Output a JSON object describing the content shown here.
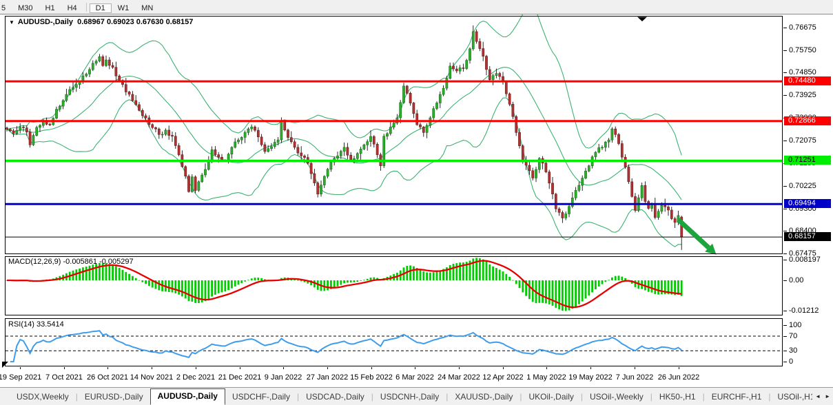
{
  "toolbar": {
    "timeframes": [
      "5",
      "M30",
      "H1",
      "H4",
      "D1",
      "W1",
      "MN"
    ],
    "active": "D1"
  },
  "chart": {
    "dropdown_glyph": "▼",
    "title": "AUDUSD-,Daily",
    "ohlc": "0.68967 0.69023 0.67630 0.68157"
  },
  "chart_data": {
    "type": "candlestick",
    "symbol": "AUDUSD-",
    "timeframe": "Daily",
    "last_bar": {
      "open": 0.68967,
      "high": 0.69023,
      "low": 0.6763,
      "close": 0.68157
    },
    "bars_total": 205,
    "price_range": [
      0.6746,
      0.7714
    ],
    "price_axis_ticks": [
      "0.76675",
      "0.75750",
      "0.74850",
      "0.73925",
      "0.73000",
      "0.72075",
      "0.71150",
      "0.70225",
      "0.69300",
      "0.68400",
      "0.67475"
    ],
    "hlines": [
      {
        "value": 0.7448,
        "label": "0.74480",
        "color": "#FF0000",
        "width": 3,
        "text": "#FFFFFF"
      },
      {
        "value": 0.72866,
        "label": "0.72866",
        "color": "#FF0000",
        "width": 3,
        "text": "#FFFFFF"
      },
      {
        "value": 0.71251,
        "label": "0.71251",
        "color": "#00EE00",
        "width": 3.5,
        "text": "#000000"
      },
      {
        "value": 0.69494,
        "label": "0.69494",
        "color": "#0000C8",
        "width": 3,
        "text": "#FFFFFF"
      },
      {
        "value": 0.68157,
        "label": "0.68157",
        "color": "#000000",
        "width": 1,
        "text": "#FFFFFF"
      }
    ],
    "bollinger": {
      "period": 20,
      "deviation": 2,
      "color": "#3CB371"
    },
    "candle_up": "#2BAF2B",
    "candle_up_stroke": "#0E5E10",
    "candle_down": "#B13232",
    "candle_down_stroke": "#5E1010",
    "close_anchors": [
      [
        0,
        0.7253
      ],
      [
        2,
        0.7236
      ],
      [
        4,
        0.7262
      ],
      [
        6,
        0.7242
      ],
      [
        7,
        0.719
      ],
      [
        9,
        0.7261
      ],
      [
        11,
        0.729
      ],
      [
        13,
        0.7272
      ],
      [
        15,
        0.7335
      ],
      [
        17,
        0.737
      ],
      [
        19,
        0.7415
      ],
      [
        21,
        0.7435
      ],
      [
        23,
        0.747
      ],
      [
        25,
        0.7496
      ],
      [
        27,
        0.753
      ],
      [
        28,
        0.7548
      ],
      [
        29,
        0.7512
      ],
      [
        30,
        0.7535
      ],
      [
        32,
        0.7505
      ],
      [
        34,
        0.7452
      ],
      [
        36,
        0.7405
      ],
      [
        38,
        0.737
      ],
      [
        40,
        0.733
      ],
      [
        42,
        0.73
      ],
      [
        44,
        0.726
      ],
      [
        46,
        0.7232
      ],
      [
        48,
        0.725
      ],
      [
        50,
        0.7225
      ],
      [
        52,
        0.715
      ],
      [
        54,
        0.7063
      ],
      [
        55,
        0.7
      ],
      [
        56,
        0.706
      ],
      [
        57,
        0.7005
      ],
      [
        58,
        0.704
      ],
      [
        60,
        0.709
      ],
      [
        62,
        0.717
      ],
      [
        64,
        0.714
      ],
      [
        66,
        0.7125
      ],
      [
        68,
        0.718
      ],
      [
        70,
        0.721
      ],
      [
        72,
        0.724
      ],
      [
        74,
        0.7263
      ],
      [
        76,
        0.7222
      ],
      [
        78,
        0.7163
      ],
      [
        80,
        0.7183
      ],
      [
        82,
        0.721
      ],
      [
        83,
        0.7285
      ],
      [
        85,
        0.722
      ],
      [
        87,
        0.718
      ],
      [
        89,
        0.7145
      ],
      [
        91,
        0.7115
      ],
      [
        93,
        0.7035
      ],
      [
        94,
        0.699
      ],
      [
        96,
        0.7062
      ],
      [
        98,
        0.712
      ],
      [
        100,
        0.7145
      ],
      [
        102,
        0.718
      ],
      [
        104,
        0.713
      ],
      [
        106,
        0.7155
      ],
      [
        108,
        0.719
      ],
      [
        110,
        0.7224
      ],
      [
        112,
        0.715
      ],
      [
        113,
        0.7105
      ],
      [
        114,
        0.7225
      ],
      [
        116,
        0.7262
      ],
      [
        118,
        0.73
      ],
      [
        120,
        0.7429
      ],
      [
        122,
        0.736
      ],
      [
        124,
        0.7272
      ],
      [
        126,
        0.724
      ],
      [
        128,
        0.73
      ],
      [
        130,
        0.736
      ],
      [
        132,
        0.742
      ],
      [
        133,
        0.746
      ],
      [
        134,
        0.751
      ],
      [
        136,
        0.749
      ],
      [
        138,
        0.75
      ],
      [
        140,
        0.758
      ],
      [
        141,
        0.765
      ],
      [
        142,
        0.761
      ],
      [
        144,
        0.755
      ],
      [
        146,
        0.7455
      ],
      [
        148,
        0.748
      ],
      [
        150,
        0.7445
      ],
      [
        152,
        0.7355
      ],
      [
        154,
        0.724
      ],
      [
        156,
        0.7125
      ],
      [
        158,
        0.7085
      ],
      [
        159,
        0.7055
      ],
      [
        160,
        0.709
      ],
      [
        161,
        0.7135
      ],
      [
        163,
        0.708
      ],
      [
        165,
        0.699
      ],
      [
        166,
        0.693
      ],
      [
        168,
        0.6893
      ],
      [
        170,
        0.694
      ],
      [
        172,
        0.7005
      ],
      [
        174,
        0.7055
      ],
      [
        176,
        0.7105
      ],
      [
        178,
        0.716
      ],
      [
        180,
        0.718
      ],
      [
        182,
        0.721
      ],
      [
        183,
        0.7255
      ],
      [
        185,
        0.7195
      ],
      [
        186,
        0.714
      ],
      [
        187,
        0.71
      ],
      [
        188,
        0.704
      ],
      [
        189,
        0.698
      ],
      [
        190,
        0.6925
      ],
      [
        191,
        0.6975
      ],
      [
        192,
        0.7025
      ],
      [
        193,
        0.696
      ],
      [
        194,
        0.6932
      ],
      [
        195,
        0.695
      ],
      [
        196,
        0.6895
      ],
      [
        197,
        0.692
      ],
      [
        198,
        0.6944
      ],
      [
        199,
        0.6938
      ],
      [
        200,
        0.6925
      ],
      [
        201,
        0.689
      ],
      [
        202,
        0.6875
      ],
      [
        203,
        0.6903
      ],
      [
        204,
        0.68157
      ]
    ],
    "indicators": [
      {
        "name": "MACD",
        "label": "MACD(12,26,9)",
        "values": "-0.005861 -0.005297",
        "fast": 12,
        "slow": 26,
        "signal": 9,
        "axis_ticks": [
          "0.008197",
          "0.00",
          "-0.01212"
        ],
        "tick_values": [
          0.008197,
          0,
          -0.01212
        ],
        "range": [
          -0.0139,
          0.0095
        ],
        "histogram_color": "#00CC00",
        "signal_color": "#E60000"
      },
      {
        "name": "RSI",
        "label": "RSI(14)",
        "value": "33.5414",
        "period": 14,
        "axis_ticks": [
          "100",
          "70",
          "30",
          "0"
        ],
        "tick_values": [
          100,
          70,
          30,
          0
        ],
        "levels": [
          70,
          30
        ],
        "range": [
          -12,
          118
        ],
        "color": "#3E9CEC"
      }
    ],
    "x_labels": [
      "19 Sep 2021",
      "7 Oct 2021",
      "26 Oct 2021",
      "14 Nov 2021",
      "2 Dec 2021",
      "21 Dec 2021",
      "9 Jan 2022",
      "27 Jan 2022",
      "15 Feb 2022",
      "6 Mar 2022",
      "24 Mar 2022",
      "12 Apr 2022",
      "1 May 2022",
      "19 May 2022",
      "7 Jun 2022",
      "26 Jun 2022"
    ],
    "annotation": {
      "type": "arrow",
      "color": "#1EA43C",
      "from_bar": 203,
      "from_price": 0.6886,
      "to_bar": 214.5,
      "to_price": 0.6744
    }
  },
  "tabs": {
    "items": [
      "USDX,Weekly",
      "EURUSD-,Daily",
      "AUDUSD-,Daily",
      "USDCHF-,Daily",
      "USDCAD-,Daily",
      "USDCNH-,Daily",
      "XAUUSD-,Daily",
      "UKOil-,Daily",
      "USOil-,Weekly",
      "HK50-,H1",
      "EURCHF-,H1",
      "USOil-,H1"
    ],
    "active": "AUDUSD-,Daily",
    "scroll_left_glyph": "◄",
    "scroll_right_glyph": "►"
  }
}
